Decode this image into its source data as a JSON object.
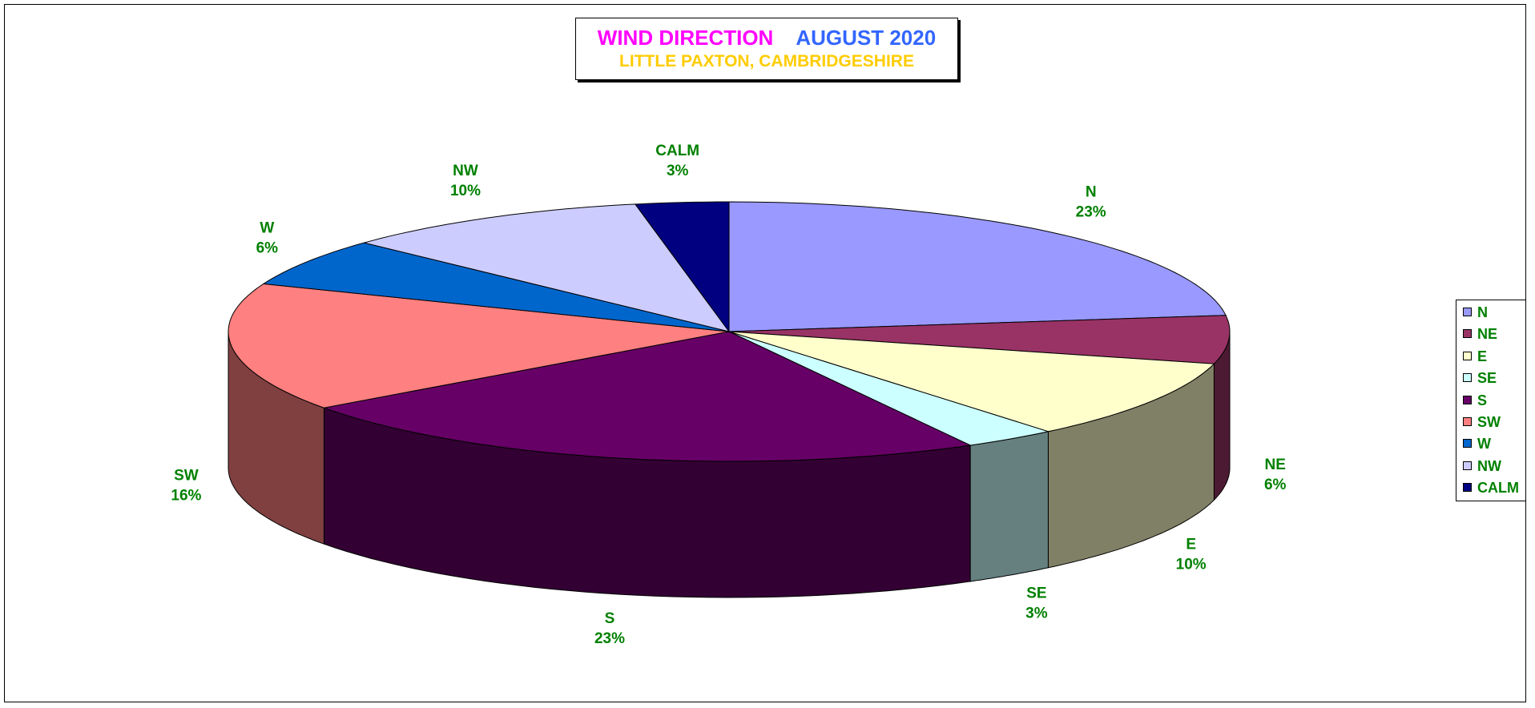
{
  "chart_data": {
    "type": "pie",
    "title": "WIND DIRECTION",
    "title_date": "AUGUST 2020",
    "subtitle": "LITTLE PAXTON, CAMBRIDGESHIRE",
    "style": "3d-pie",
    "legend_position": "right",
    "categories": [
      "N",
      "NE",
      "E",
      "SE",
      "S",
      "SW",
      "W",
      "NW",
      "CALM"
    ],
    "values": [
      23,
      6,
      10,
      3,
      23,
      16,
      6,
      10,
      3
    ],
    "labels": [
      "23%",
      "6%",
      "10%",
      "3%",
      "23%",
      "16%",
      "6%",
      "10%",
      "3%"
    ],
    "colors": [
      "#9999ff",
      "#993366",
      "#ffffcc",
      "#ccffff",
      "#660066",
      "#ff8080",
      "#0066cc",
      "#ccccff",
      "#000080"
    ],
    "label_color": "#008000",
    "title_colors": {
      "title": "#ff00ff",
      "title_date": "#3366ff",
      "subtitle": "#ffcc00"
    }
  }
}
